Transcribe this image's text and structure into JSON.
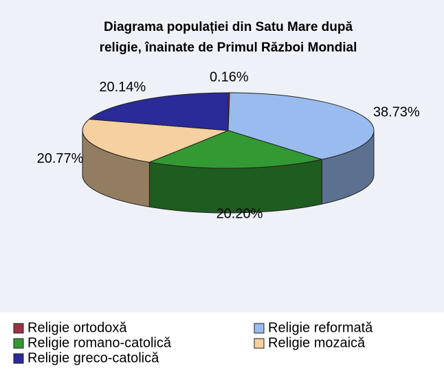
{
  "chart_data": {
    "type": "pie3d",
    "title": [
      "Diagrama populației din Satu Mare după",
      "religie, înainate de Primul Război Mondial"
    ],
    "series": [
      {
        "name": "Religie ortodoxă",
        "color": "#993344",
        "values": [
          0.16
        ],
        "value_labels": [
          "0.16%"
        ]
      },
      {
        "name": "Religie reformată",
        "color": "#99bbee",
        "values": [
          38.73
        ],
        "value_labels": [
          "38.73%"
        ]
      },
      {
        "name": "Religie romano-catolică",
        "color": "#339933",
        "values": [
          20.2
        ],
        "value_labels": [
          "20.20%"
        ]
      },
      {
        "name": "Religie mozaică",
        "color": "#f5d0a0",
        "values": [
          20.77
        ],
        "value_labels": [
          "20.77%"
        ]
      },
      {
        "name": "Religie greco-catolică",
        "color": "#2a2a99",
        "values": [
          20.14
        ],
        "value_labels": [
          "20.14%"
        ]
      }
    ],
    "legend": "bottom"
  }
}
